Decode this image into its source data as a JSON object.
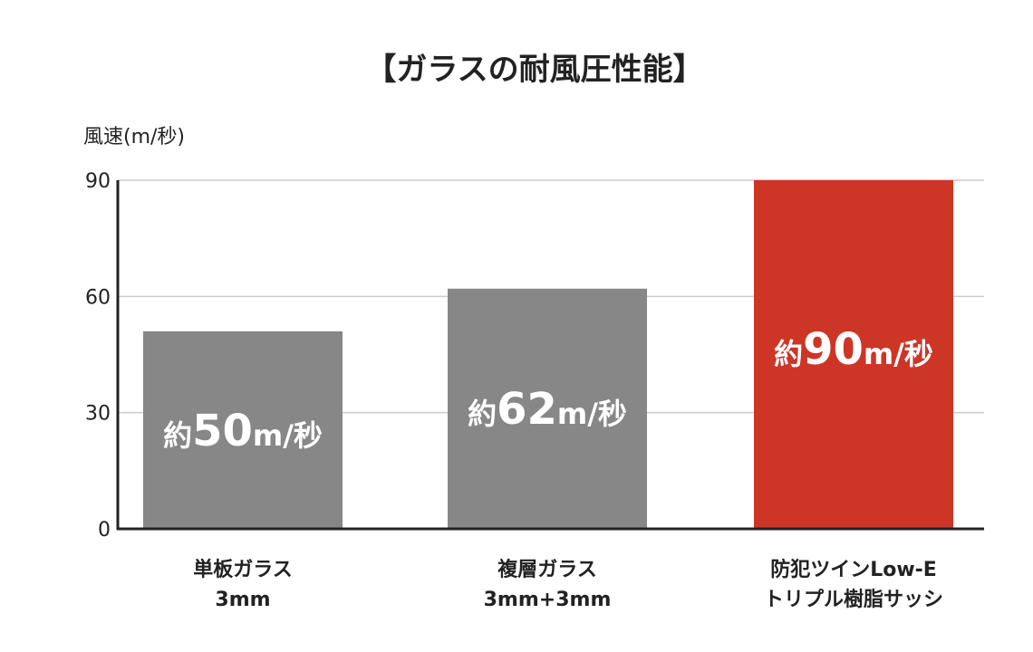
{
  "chart_data": {
    "type": "bar",
    "title": "【ガラスの耐風圧性能】",
    "ylabel": "風速(m/秒)",
    "ylim": [
      0,
      90
    ],
    "yticks": [
      0,
      30,
      60,
      90
    ],
    "grid": true,
    "categories": [
      [
        "単板ガラス",
        "3mm"
      ],
      [
        "複層ガラス",
        "3mm+3mm"
      ],
      [
        "防犯ツインLow-E",
        "トリプル樹脂サッシ"
      ]
    ],
    "values": [
      51,
      62,
      90
    ],
    "bar_labels": [
      {
        "prefix": "約",
        "number": "50",
        "unit": "m/秒"
      },
      {
        "prefix": "約",
        "number": "62",
        "unit": "m/秒"
      },
      {
        "prefix": "約",
        "number": "90",
        "unit": "m/秒"
      }
    ],
    "colors": {
      "default_bar": "#878787",
      "highlight_bar": "#cd3527",
      "grid": "#cccccc",
      "axis": "#222222"
    },
    "highlight_index": 2
  }
}
